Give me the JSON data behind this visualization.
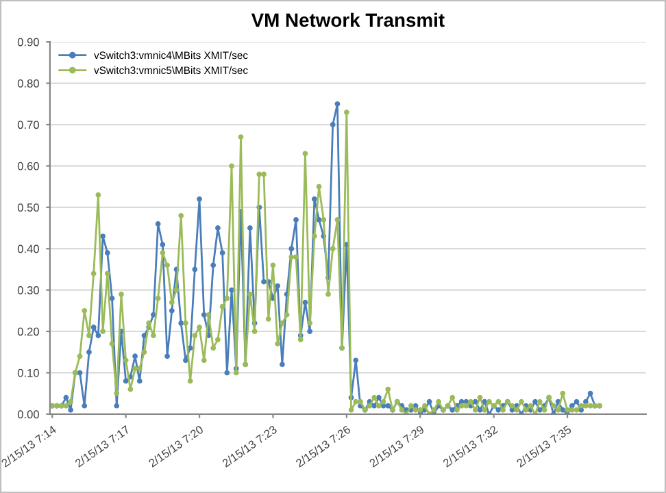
{
  "chart_data": {
    "type": "line",
    "title": "VM Network Transmit",
    "categories": [
      "2/15/13 7:14",
      null,
      null,
      null,
      null,
      null,
      null,
      null,
      null,
      null,
      null,
      null,
      null,
      null,
      null,
      null,
      "2/15/13 7:17",
      null,
      null,
      null,
      null,
      null,
      null,
      null,
      null,
      null,
      null,
      null,
      null,
      null,
      null,
      null,
      "2/15/13 7:20",
      null,
      null,
      null,
      null,
      null,
      null,
      null,
      null,
      null,
      null,
      null,
      null,
      null,
      null,
      null,
      "2/15/13 7:23",
      null,
      null,
      null,
      null,
      null,
      null,
      null,
      null,
      null,
      null,
      null,
      null,
      null,
      null,
      null,
      "2/15/13 7:26",
      null,
      null,
      null,
      null,
      null,
      null,
      null,
      null,
      null,
      null,
      null,
      null,
      null,
      null,
      null,
      "2/15/13 7:29",
      null,
      null,
      null,
      null,
      null,
      null,
      null,
      null,
      null,
      null,
      null,
      null,
      null,
      null,
      null,
      "2/15/13 7:32",
      null,
      null,
      null,
      null,
      null,
      null,
      null,
      null,
      null,
      null,
      null,
      null,
      null,
      null,
      null,
      "2/15/13 7:35",
      null,
      null,
      null,
      null,
      null,
      null,
      null
    ],
    "series": [
      {
        "name": "vSwitch3:vmnic4\\MBits XMIT/sec",
        "color": "#4a7ebb",
        "values": [
          0.02,
          0.02,
          0.02,
          0.04,
          0.01,
          0.1,
          0.1,
          0.02,
          0.15,
          0.21,
          0.19,
          0.43,
          0.39,
          0.28,
          0.02,
          0.2,
          0.08,
          0.09,
          0.14,
          0.08,
          0.19,
          0.21,
          0.24,
          0.46,
          0.41,
          0.14,
          0.25,
          0.35,
          0.22,
          0.13,
          0.16,
          0.35,
          0.52,
          0.24,
          0.19,
          0.36,
          0.45,
          0.39,
          0.1,
          0.3,
          0.11,
          0.49,
          0.12,
          0.45,
          0.22,
          0.5,
          0.32,
          0.32,
          0.28,
          0.31,
          0.12,
          0.29,
          0.4,
          0.47,
          0.19,
          0.27,
          0.2,
          0.52,
          0.47,
          0.43,
          0.33,
          0.7,
          0.75,
          0.16,
          0.41,
          0.04,
          0.13,
          0.02,
          0.01,
          0.03,
          0.02,
          0.04,
          0.02,
          0.02,
          0.01,
          0.03,
          0.02,
          0.01,
          0.01,
          0.02,
          0.0,
          0.01,
          0.03,
          0.0,
          0.02,
          0.01,
          0.02,
          0.01,
          0.02,
          0.03,
          0.03,
          0.02,
          0.03,
          0.01,
          0.03,
          0.0,
          0.02,
          0.01,
          0.02,
          0.03,
          0.01,
          0.02,
          0.0,
          0.02,
          0.01,
          0.03,
          0.01,
          0.02,
          0.04,
          0.0,
          0.03,
          0.01,
          0.0,
          0.02,
          0.03,
          0.01,
          0.03,
          0.05,
          0.02,
          0.02
        ]
      },
      {
        "name": "vSwitch3:vmnic5\\MBits XMIT/sec",
        "color": "#9bbb59",
        "values": [
          0.02,
          0.02,
          0.02,
          0.02,
          0.03,
          0.1,
          0.14,
          0.25,
          0.19,
          0.34,
          0.53,
          0.2,
          0.34,
          0.17,
          0.05,
          0.29,
          0.13,
          0.06,
          0.11,
          0.11,
          0.15,
          0.22,
          0.19,
          0.28,
          0.39,
          0.36,
          0.27,
          0.3,
          0.48,
          0.22,
          0.08,
          0.19,
          0.21,
          0.13,
          0.24,
          0.16,
          0.18,
          0.26,
          0.28,
          0.6,
          0.1,
          0.67,
          0.12,
          0.29,
          0.2,
          0.58,
          0.58,
          0.23,
          0.36,
          0.17,
          0.22,
          0.24,
          0.38,
          0.38,
          0.18,
          0.63,
          0.22,
          0.43,
          0.55,
          0.47,
          0.29,
          0.4,
          0.47,
          0.16,
          0.73,
          0.01,
          0.03,
          0.03,
          0.01,
          0.02,
          0.04,
          0.02,
          0.03,
          0.06,
          0.01,
          0.03,
          0.01,
          0.0,
          0.02,
          0.01,
          0.01,
          0.02,
          0.0,
          0.01,
          0.03,
          0.01,
          0.02,
          0.04,
          0.01,
          0.02,
          0.02,
          0.03,
          0.01,
          0.04,
          0.01,
          0.03,
          0.02,
          0.03,
          0.01,
          0.03,
          0.02,
          0.01,
          0.03,
          0.01,
          0.02,
          0.0,
          0.03,
          0.01,
          0.04,
          0.02,
          0.01,
          0.05,
          0.01,
          0.01,
          0.01,
          0.02,
          0.02,
          0.02,
          0.02,
          0.02
        ]
      }
    ],
    "ylim": [
      0,
      0.9
    ],
    "yticks": [
      {
        "value": 0,
        "label": "0.00"
      },
      {
        "value": 0.1,
        "label": "0.10"
      },
      {
        "value": 0.2,
        "label": "0.20"
      },
      {
        "value": 0.3,
        "label": "0.30"
      },
      {
        "value": 0.4,
        "label": "0.40"
      },
      {
        "value": 0.5,
        "label": "0.50"
      },
      {
        "value": 0.6,
        "label": "0.60"
      },
      {
        "value": 0.7,
        "label": "0.70"
      },
      {
        "value": 0.8,
        "label": "0.80"
      },
      {
        "value": 0.9,
        "label": "0.90"
      }
    ],
    "grid": "y",
    "legend": "top left",
    "marker": "circle",
    "line_style": "solid"
  }
}
